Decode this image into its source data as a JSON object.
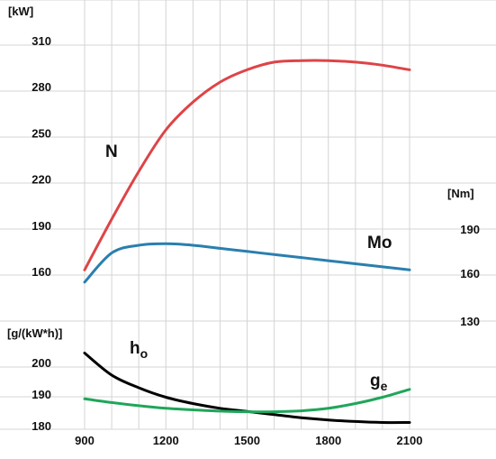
{
  "chart_data": {
    "type": "line",
    "x": [
      900,
      1000,
      1100,
      1200,
      1300,
      1400,
      1500,
      1600,
      1700,
      1800,
      1900,
      2000,
      2100
    ],
    "x_ticks": [
      "900",
      "1200",
      "1500",
      "1800",
      "2100"
    ],
    "grid": true,
    "power_axis": {
      "unit": "[kW]",
      "ticks": [
        "310",
        "280",
        "250",
        "220",
        "190",
        "160"
      ],
      "range": [
        160,
        310
      ]
    },
    "torque_axis": {
      "unit": "[Nm]",
      "ticks": [
        "190",
        "160",
        "130"
      ]
    },
    "consumption_axis": {
      "unit": "[g/(kW*h)]",
      "ticks": [
        "200",
        "190",
        "180"
      ],
      "range": [
        180,
        200
      ]
    },
    "series": [
      {
        "name": "N",
        "axis": "power",
        "color": "#dd4447",
        "values": [
          161,
          194,
          225,
          252,
          270,
          283,
          291,
          296,
          297,
          297,
          296,
          294,
          291
        ]
      },
      {
        "name": "Mo",
        "axis": "power",
        "color": "#2a7fae",
        "values": [
          153,
          172,
          177,
          178,
          177,
          175,
          173,
          171,
          169,
          167,
          165,
          163,
          161
        ]
      },
      {
        "name": "h",
        "name_sub": "o",
        "axis": "consumption",
        "color": "#000000",
        "values": [
          203,
          196,
          192,
          189,
          187,
          185.5,
          184.5,
          183.5,
          182.5,
          181.8,
          181.3,
          181,
          181
        ]
      },
      {
        "name": "g",
        "name_sub": "e",
        "axis": "consumption",
        "color": "#1fa65a",
        "values": [
          188.5,
          187.3,
          186.3,
          185.5,
          185,
          184.6,
          184.4,
          184.4,
          184.7,
          185.5,
          187,
          189,
          191.5
        ]
      }
    ]
  }
}
